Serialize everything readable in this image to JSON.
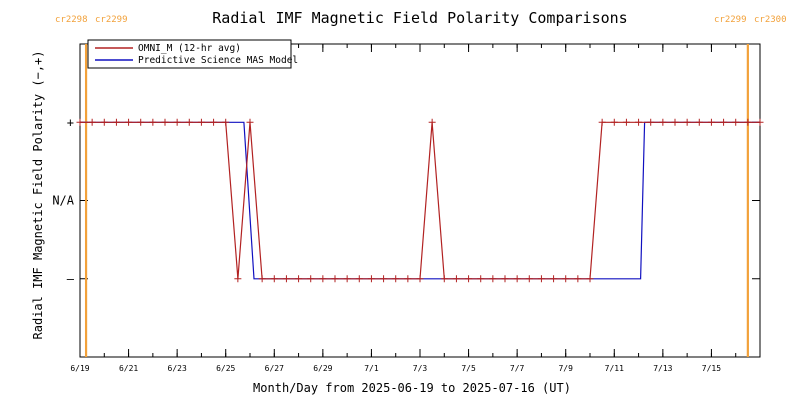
{
  "chart_data": {
    "type": "line",
    "title": "Radial IMF Magnetic Field Polarity Comparisons",
    "xlabel": "Month/Day from 2025-06-19 to 2025-07-16 (UT)",
    "ylabel": "Radial IMF Magnetic Field Polarity (−,+)",
    "x_start": "2025-06-19",
    "xlim": [
      "2025-06-19",
      "2025-07-17"
    ],
    "ylim": [
      -2,
      2
    ],
    "x_ticks": [
      "2025-06-19",
      "2025-06-21",
      "2025-06-23",
      "2025-06-25",
      "2025-06-27",
      "2025-06-29",
      "2025-07-01",
      "2025-07-03",
      "2025-07-05",
      "2025-07-07",
      "2025-07-09",
      "2025-07-11",
      "2025-07-13",
      "2025-07-15"
    ],
    "x_tick_labels": [
      "6/19",
      "6/21",
      "6/23",
      "6/25",
      "6/27",
      "6/29",
      "7/1",
      "7/3",
      "7/5",
      "7/7",
      "7/9",
      "7/11",
      "7/13",
      "7/15"
    ],
    "y_ticks": [
      1,
      0,
      -1
    ],
    "y_tick_labels": [
      "+",
      "N/A",
      "–"
    ],
    "legend_placement": "top-left",
    "carrington_markers": [
      {
        "date": "2025-06-19T06:00",
        "label_left": "cr2298",
        "label_right": "cr2299",
        "label_side": "left",
        "color": "#f2a13a"
      },
      {
        "date": "2025-07-16T12:00",
        "label_left": "cr2299",
        "label_right": "cr2300",
        "label_side": "right",
        "color": "#f2a13a"
      }
    ],
    "series": [
      {
        "name": "OMNI_M (12-hr avg)",
        "color": "#b22222",
        "marker": "+",
        "x": [
          "2025-06-19T00:00",
          "2025-06-19T12:00",
          "2025-06-20T00:00",
          "2025-06-20T12:00",
          "2025-06-21T00:00",
          "2025-06-21T12:00",
          "2025-06-22T00:00",
          "2025-06-22T12:00",
          "2025-06-23T00:00",
          "2025-06-23T12:00",
          "2025-06-24T00:00",
          "2025-06-24T12:00",
          "2025-06-25T00:00",
          "2025-06-25T12:00",
          "2025-06-26T00:00",
          "2025-06-26T12:00",
          "2025-06-27T00:00",
          "2025-06-27T12:00",
          "2025-06-28T00:00",
          "2025-06-28T12:00",
          "2025-06-29T00:00",
          "2025-06-29T12:00",
          "2025-06-30T00:00",
          "2025-06-30T12:00",
          "2025-07-01T00:00",
          "2025-07-01T12:00",
          "2025-07-02T00:00",
          "2025-07-02T12:00",
          "2025-07-03T00:00",
          "2025-07-03T12:00",
          "2025-07-04T00:00",
          "2025-07-04T12:00",
          "2025-07-05T00:00",
          "2025-07-05T12:00",
          "2025-07-06T00:00",
          "2025-07-06T12:00",
          "2025-07-07T00:00",
          "2025-07-07T12:00",
          "2025-07-08T00:00",
          "2025-07-08T12:00",
          "2025-07-09T00:00",
          "2025-07-09T12:00",
          "2025-07-10T00:00",
          "2025-07-10T12:00",
          "2025-07-11T00:00",
          "2025-07-11T12:00",
          "2025-07-12T00:00",
          "2025-07-12T12:00",
          "2025-07-13T00:00",
          "2025-07-13T12:00",
          "2025-07-14T00:00",
          "2025-07-14T12:00",
          "2025-07-15T00:00",
          "2025-07-15T12:00",
          "2025-07-16T00:00",
          "2025-07-16T12:00",
          "2025-07-17T00:00"
        ],
        "y": [
          1,
          1,
          1,
          1,
          1,
          1,
          1,
          1,
          1,
          1,
          1,
          1,
          1,
          -1,
          1,
          -1,
          -1,
          -1,
          -1,
          -1,
          -1,
          -1,
          -1,
          -1,
          -1,
          -1,
          -1,
          -1,
          -1,
          1,
          -1,
          -1,
          -1,
          -1,
          -1,
          -1,
          -1,
          -1,
          -1,
          -1,
          -1,
          -1,
          -1,
          1,
          1,
          1,
          1,
          1,
          1,
          1,
          1,
          1,
          1,
          1,
          1,
          1,
          1
        ]
      },
      {
        "name": "Predictive Science MAS Model",
        "color": "#1010c0",
        "x": [
          "2025-06-19T00:00",
          "2025-06-25T18:00",
          "2025-06-26T04:00",
          "2025-07-12T02:00",
          "2025-07-12T06:00",
          "2025-07-17T00:00"
        ],
        "y": [
          1,
          1,
          -1,
          -1,
          1,
          1
        ]
      }
    ]
  }
}
